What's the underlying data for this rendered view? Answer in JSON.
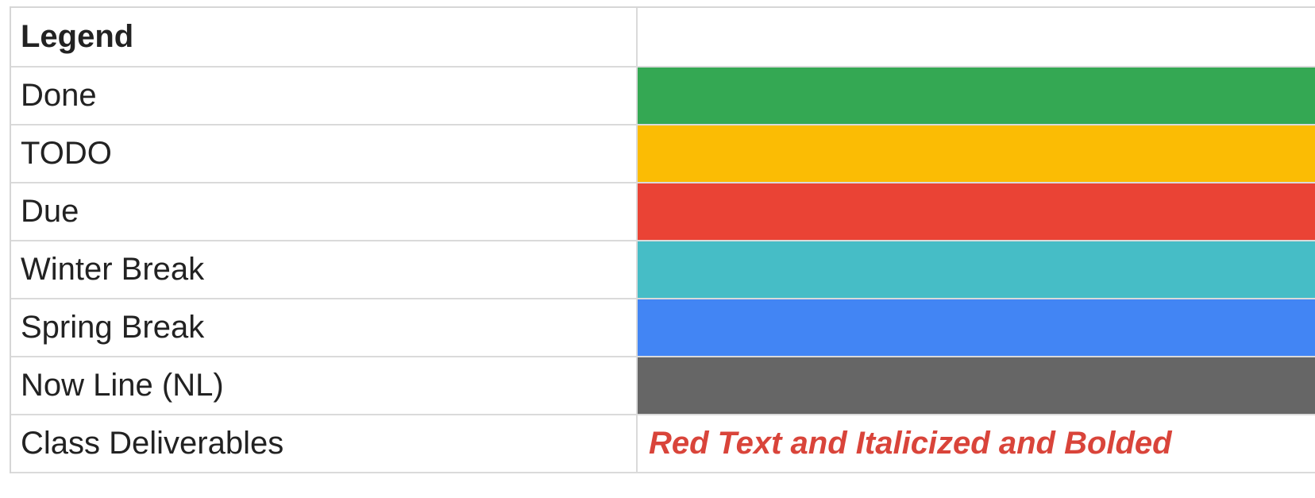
{
  "legend": {
    "title": "Legend",
    "rows": [
      {
        "label": "Done",
        "color": "#34a853"
      },
      {
        "label": "TODO",
        "color": "#fbbc04"
      },
      {
        "label": "Due",
        "color": "#ea4335"
      },
      {
        "label": "Winter Break",
        "color": "#46bdc6"
      },
      {
        "label": "Spring Break",
        "color": "#4285f4"
      },
      {
        "label": "Now Line (NL)",
        "color": "#666666"
      }
    ],
    "deliverables": {
      "label": "Class Deliverables",
      "text": "Red Text and Italicized and Bolded",
      "text_color": "#d9443a"
    }
  }
}
